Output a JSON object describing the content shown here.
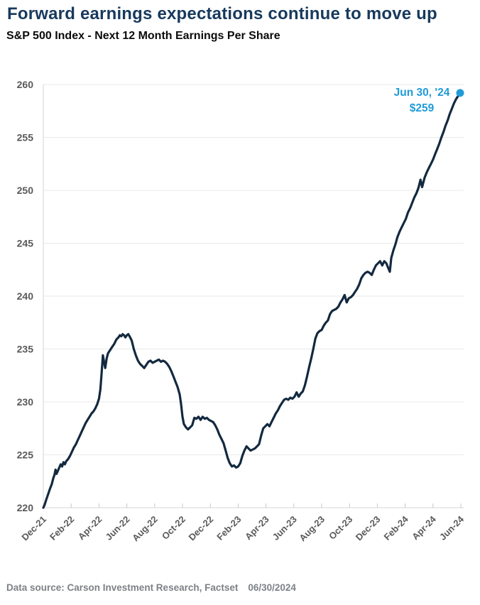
{
  "chart_data": {
    "type": "line",
    "title": "Forward earnings expectations continue to move up",
    "subtitle": "S&P 500 Index - Next 12 Month Earnings Per Share",
    "ylim": [
      220,
      260
    ],
    "ytick_step": 5,
    "xlim_months": [
      0,
      30.2
    ],
    "grid": "horizontal",
    "legend": "none",
    "x_tick_labels": [
      "Dec-21",
      "Feb-22",
      "Apr-22",
      "Jun-22",
      "Aug-22",
      "Oct-22",
      "Dec-22",
      "Feb-23",
      "Apr-23",
      "Jun-23",
      "Aug-23",
      "Oct-23",
      "Dec-23",
      "Feb-24",
      "Apr-24",
      "Jun-24"
    ],
    "annotation": {
      "line1": "Jun 30, '24",
      "line2": "$259"
    },
    "colors": {
      "line": "#13293f",
      "accent": "#1f9bd8",
      "grid": "#e9e9e9",
      "axis": "#d5d5d5",
      "tick": "#c9c9c9",
      "axis_text": "#595959",
      "title": "#17395d"
    },
    "series": [
      {
        "name": "S&P 500 Next 12 Month EPS",
        "points": [
          [
            0.0,
            220.0
          ],
          [
            0.1,
            220.3
          ],
          [
            0.22,
            220.8
          ],
          [
            0.35,
            221.3
          ],
          [
            0.48,
            221.8
          ],
          [
            0.6,
            222.2
          ],
          [
            0.72,
            222.8
          ],
          [
            0.8,
            223.1
          ],
          [
            0.88,
            223.6
          ],
          [
            0.95,
            223.2
          ],
          [
            1.05,
            223.5
          ],
          [
            1.15,
            223.8
          ],
          [
            1.25,
            224.1
          ],
          [
            1.35,
            223.9
          ],
          [
            1.45,
            224.3
          ],
          [
            1.55,
            224.1
          ],
          [
            1.65,
            224.4
          ],
          [
            1.78,
            224.6
          ],
          [
            1.92,
            224.9
          ],
          [
            2.06,
            225.3
          ],
          [
            2.2,
            225.7
          ],
          [
            2.34,
            226.0
          ],
          [
            2.48,
            226.4
          ],
          [
            2.62,
            226.8
          ],
          [
            2.76,
            227.2
          ],
          [
            2.9,
            227.6
          ],
          [
            3.04,
            228.0
          ],
          [
            3.18,
            228.3
          ],
          [
            3.32,
            228.6
          ],
          [
            3.46,
            228.9
          ],
          [
            3.6,
            229.1
          ],
          [
            3.74,
            229.4
          ],
          [
            3.88,
            229.8
          ],
          [
            4.0,
            230.3
          ],
          [
            4.1,
            231.2
          ],
          [
            4.2,
            232.9
          ],
          [
            4.28,
            234.4
          ],
          [
            4.36,
            233.8
          ],
          [
            4.45,
            233.2
          ],
          [
            4.55,
            234.1
          ],
          [
            4.65,
            234.6
          ],
          [
            4.8,
            234.9
          ],
          [
            4.95,
            235.2
          ],
          [
            5.1,
            235.5
          ],
          [
            5.25,
            235.9
          ],
          [
            5.4,
            236.1
          ],
          [
            5.5,
            236.3
          ],
          [
            5.6,
            236.2
          ],
          [
            5.7,
            236.4
          ],
          [
            5.8,
            236.3
          ],
          [
            5.9,
            236.1
          ],
          [
            6.0,
            236.3
          ],
          [
            6.1,
            236.4
          ],
          [
            6.2,
            236.2
          ],
          [
            6.35,
            235.8
          ],
          [
            6.5,
            235.0
          ],
          [
            6.65,
            234.4
          ],
          [
            6.8,
            233.9
          ],
          [
            6.95,
            233.6
          ],
          [
            7.1,
            233.4
          ],
          [
            7.25,
            233.2
          ],
          [
            7.4,
            233.5
          ],
          [
            7.55,
            233.8
          ],
          [
            7.7,
            233.9
          ],
          [
            7.85,
            233.7
          ],
          [
            8.0,
            233.8
          ],
          [
            8.15,
            233.9
          ],
          [
            8.3,
            234.0
          ],
          [
            8.45,
            233.8
          ],
          [
            8.6,
            233.9
          ],
          [
            8.75,
            233.8
          ],
          [
            8.9,
            233.6
          ],
          [
            9.05,
            233.3
          ],
          [
            9.2,
            232.9
          ],
          [
            9.35,
            232.4
          ],
          [
            9.5,
            231.9
          ],
          [
            9.65,
            231.4
          ],
          [
            9.8,
            230.7
          ],
          [
            9.9,
            229.8
          ],
          [
            10.0,
            228.6
          ],
          [
            10.1,
            227.9
          ],
          [
            10.25,
            227.6
          ],
          [
            10.4,
            227.4
          ],
          [
            10.55,
            227.6
          ],
          [
            10.7,
            227.8
          ],
          [
            10.85,
            228.5
          ],
          [
            11.0,
            228.4
          ],
          [
            11.15,
            228.6
          ],
          [
            11.3,
            228.3
          ],
          [
            11.45,
            228.6
          ],
          [
            11.6,
            228.4
          ],
          [
            11.75,
            228.5
          ],
          [
            11.9,
            228.3
          ],
          [
            12.05,
            228.2
          ],
          [
            12.2,
            228.1
          ],
          [
            12.35,
            227.8
          ],
          [
            12.5,
            227.4
          ],
          [
            12.65,
            226.9
          ],
          [
            12.8,
            226.5
          ],
          [
            12.95,
            226.1
          ],
          [
            13.1,
            225.4
          ],
          [
            13.25,
            224.7
          ],
          [
            13.4,
            224.2
          ],
          [
            13.55,
            223.9
          ],
          [
            13.7,
            224.0
          ],
          [
            13.85,
            223.8
          ],
          [
            14.0,
            223.9
          ],
          [
            14.15,
            224.2
          ],
          [
            14.3,
            224.9
          ],
          [
            14.45,
            225.4
          ],
          [
            14.6,
            225.8
          ],
          [
            14.75,
            225.6
          ],
          [
            14.9,
            225.4
          ],
          [
            15.05,
            225.5
          ],
          [
            15.2,
            225.6
          ],
          [
            15.35,
            225.8
          ],
          [
            15.5,
            226.0
          ],
          [
            15.65,
            226.8
          ],
          [
            15.8,
            227.5
          ],
          [
            15.95,
            227.7
          ],
          [
            16.1,
            227.9
          ],
          [
            16.25,
            227.7
          ],
          [
            16.4,
            228.1
          ],
          [
            16.55,
            228.5
          ],
          [
            16.7,
            228.9
          ],
          [
            16.85,
            229.2
          ],
          [
            17.0,
            229.6
          ],
          [
            17.15,
            229.9
          ],
          [
            17.3,
            230.2
          ],
          [
            17.45,
            230.3
          ],
          [
            17.6,
            230.2
          ],
          [
            17.75,
            230.4
          ],
          [
            17.9,
            230.3
          ],
          [
            18.05,
            230.5
          ],
          [
            18.2,
            230.9
          ],
          [
            18.35,
            230.5
          ],
          [
            18.5,
            230.8
          ],
          [
            18.65,
            231.0
          ],
          [
            18.8,
            231.6
          ],
          [
            18.95,
            232.4
          ],
          [
            19.1,
            233.3
          ],
          [
            19.25,
            234.1
          ],
          [
            19.4,
            235.0
          ],
          [
            19.55,
            236.0
          ],
          [
            19.7,
            236.5
          ],
          [
            19.85,
            236.7
          ],
          [
            20.0,
            236.8
          ],
          [
            20.15,
            237.2
          ],
          [
            20.3,
            237.5
          ],
          [
            20.45,
            237.7
          ],
          [
            20.6,
            238.3
          ],
          [
            20.75,
            238.6
          ],
          [
            20.9,
            238.7
          ],
          [
            21.05,
            238.8
          ],
          [
            21.2,
            239.0
          ],
          [
            21.35,
            239.4
          ],
          [
            21.5,
            239.7
          ],
          [
            21.65,
            240.1
          ],
          [
            21.8,
            239.4
          ],
          [
            21.95,
            239.8
          ],
          [
            22.1,
            239.9
          ],
          [
            22.25,
            240.1
          ],
          [
            22.4,
            240.4
          ],
          [
            22.55,
            240.7
          ],
          [
            22.7,
            241.1
          ],
          [
            22.85,
            241.7
          ],
          [
            23.0,
            242.0
          ],
          [
            23.15,
            242.2
          ],
          [
            23.3,
            242.3
          ],
          [
            23.45,
            242.2
          ],
          [
            23.6,
            242.0
          ],
          [
            23.75,
            242.5
          ],
          [
            23.9,
            242.9
          ],
          [
            24.05,
            243.1
          ],
          [
            24.2,
            243.3
          ],
          [
            24.35,
            242.9
          ],
          [
            24.5,
            243.3
          ],
          [
            24.65,
            243.1
          ],
          [
            24.8,
            242.6
          ],
          [
            24.9,
            242.3
          ],
          [
            25.0,
            243.6
          ],
          [
            25.15,
            244.3
          ],
          [
            25.3,
            244.9
          ],
          [
            25.45,
            245.6
          ],
          [
            25.6,
            246.1
          ],
          [
            25.75,
            246.5
          ],
          [
            25.9,
            246.9
          ],
          [
            26.05,
            247.3
          ],
          [
            26.2,
            247.9
          ],
          [
            26.35,
            248.3
          ],
          [
            26.5,
            248.8
          ],
          [
            26.65,
            249.3
          ],
          [
            26.8,
            249.7
          ],
          [
            26.95,
            250.2
          ],
          [
            27.1,
            251.0
          ],
          [
            27.22,
            250.3
          ],
          [
            27.4,
            251.2
          ],
          [
            27.55,
            251.7
          ],
          [
            27.7,
            252.1
          ],
          [
            27.85,
            252.5
          ],
          [
            28.0,
            252.9
          ],
          [
            28.15,
            253.4
          ],
          [
            28.3,
            253.9
          ],
          [
            28.45,
            254.4
          ],
          [
            28.6,
            255.0
          ],
          [
            28.75,
            255.5
          ],
          [
            28.9,
            256.1
          ],
          [
            29.05,
            256.6
          ],
          [
            29.2,
            257.2
          ],
          [
            29.35,
            257.7
          ],
          [
            29.5,
            258.2
          ],
          [
            29.65,
            258.6
          ],
          [
            29.8,
            258.9
          ],
          [
            29.95,
            259.2
          ]
        ]
      }
    ]
  },
  "footer": {
    "source": "Data source: Carson Investment Research, Factset",
    "date": "06/30/2024"
  }
}
